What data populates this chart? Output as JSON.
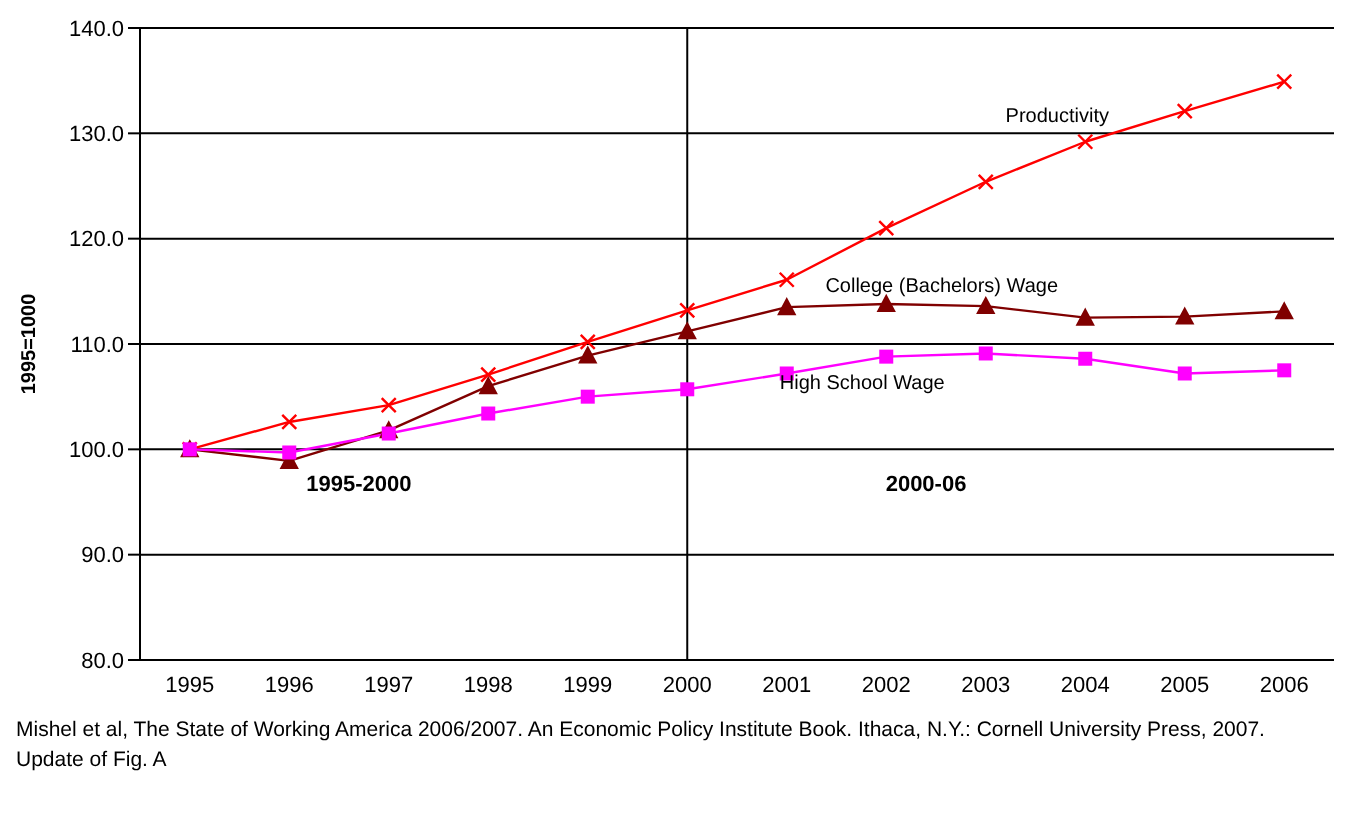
{
  "chart_data": {
    "type": "line",
    "ylabel": "1995=1000",
    "categories": [
      "1995",
      "1996",
      "1997",
      "1998",
      "1999",
      "2000",
      "2001",
      "2002",
      "2003",
      "2004",
      "2005",
      "2006"
    ],
    "series": [
      {
        "name": "Productivity",
        "color": "#ff0000",
        "marker": "cross",
        "values": [
          100,
          102.6,
          104.2,
          107.1,
          110.2,
          113.2,
          116.1,
          121.0,
          125.4,
          129.2,
          132.1,
          134.9
        ]
      },
      {
        "name": "College (Bachelors) Wage",
        "color": "#800000",
        "marker": "triangle",
        "values": [
          100,
          98.9,
          101.8,
          106.0,
          108.9,
          111.2,
          113.5,
          113.8,
          113.6,
          112.5,
          112.6,
          113.1
        ]
      },
      {
        "name": "High School Wage",
        "color": "#ff00ff",
        "marker": "square",
        "values": [
          100,
          99.7,
          101.5,
          103.4,
          105.0,
          105.7,
          107.2,
          108.8,
          109.1,
          108.6,
          107.2,
          107.5
        ]
      }
    ],
    "ylim": [
      80,
      140
    ],
    "yticks": [
      {
        "value": 80,
        "label": "80.0"
      },
      {
        "value": 90,
        "label": "90.0"
      },
      {
        "value": 100,
        "label": "100.0"
      },
      {
        "value": 110,
        "label": "110.0"
      },
      {
        "value": 120,
        "label": "120.0"
      },
      {
        "value": 130,
        "label": "130.0"
      },
      {
        "value": 140,
        "label": "140.0"
      }
    ],
    "grid": "y",
    "legend": false,
    "ref_lines": [
      {
        "axis": "x",
        "value": "2000",
        "color": "#000000"
      }
    ],
    "annotations": [
      "1995-2000",
      "2000-06",
      "Mishel et al, The State of Working America 2006/2007.  An Economic Policy Institute Book. Ithaca, N.Y.: Cornell University Press, 2007.",
      "Update of Fig. A"
    ]
  }
}
